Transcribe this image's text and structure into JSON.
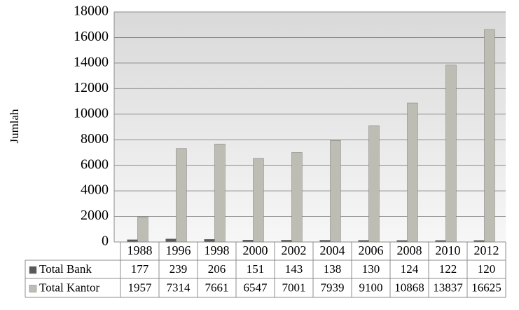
{
  "chart_data": {
    "type": "bar",
    "y_label": "Jumlah",
    "categories": [
      "1988",
      "1996",
      "1998",
      "2000",
      "2002",
      "2004",
      "2006",
      "2008",
      "2010",
      "2012"
    ],
    "series": [
      {
        "name": "Total Bank",
        "color": "#595959",
        "values": [
          177,
          239,
          206,
          151,
          143,
          138,
          130,
          124,
          122,
          120
        ]
      },
      {
        "name": "Total Kantor",
        "color": "#bdbdb4",
        "values": [
          1957,
          7314,
          7661,
          6547,
          7001,
          7939,
          9100,
          10868,
          13837,
          16625
        ]
      }
    ],
    "ylim": [
      0,
      18000
    ],
    "yticks": [
      0,
      2000,
      4000,
      6000,
      8000,
      10000,
      12000,
      14000,
      16000,
      18000
    ],
    "grid": true
  }
}
